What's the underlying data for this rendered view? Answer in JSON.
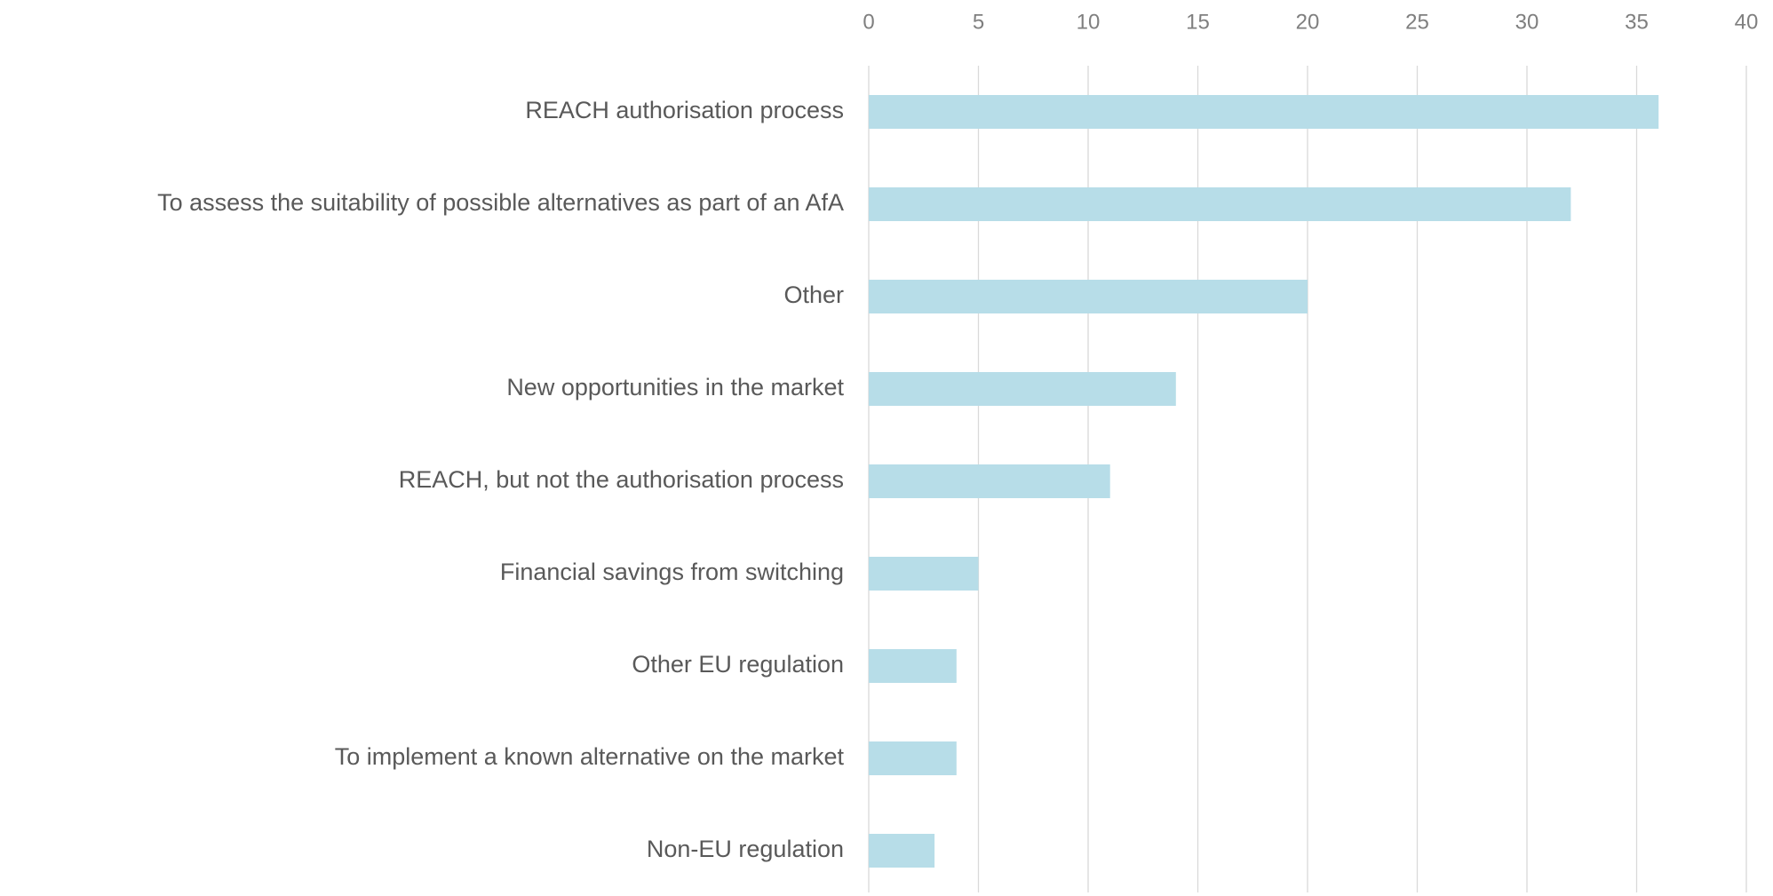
{
  "chart_data": {
    "type": "bar",
    "orientation": "horizontal",
    "categories": [
      "REACH authorisation process",
      "To assess the suitability of possible alternatives as part of an AfA",
      "Other",
      "New opportunities in the market",
      "REACH, but not the authorisation process",
      "Financial savings from switching",
      "Other EU regulation",
      "To implement a known alternative on the market",
      "Non-EU regulation"
    ],
    "values": [
      36,
      32,
      20,
      14,
      11,
      5,
      4,
      4,
      3
    ],
    "color": "#b7dde8",
    "xlim": [
      0,
      40
    ],
    "xticks": [
      0,
      5,
      10,
      15,
      20,
      25,
      30,
      35,
      40
    ],
    "grid": true
  }
}
